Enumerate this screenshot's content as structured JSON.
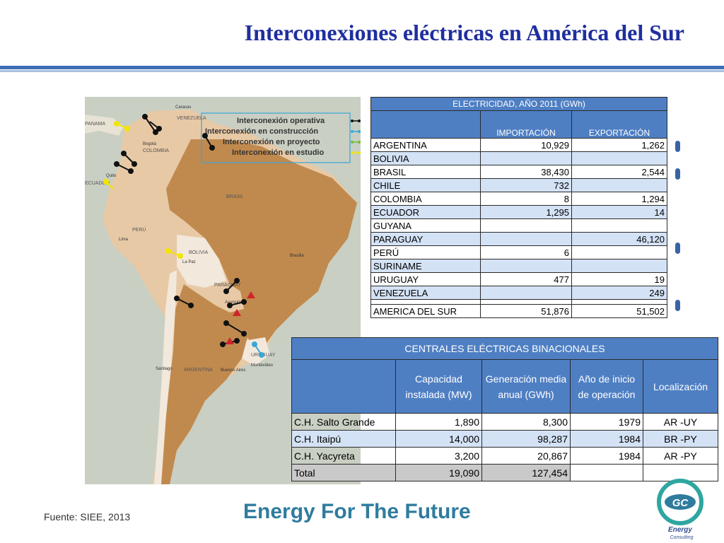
{
  "title": "Interconexiones eléctricas en América del Sur",
  "map": {
    "legend": {
      "operativa": "Interconexión operativa",
      "construccion": "Interconexión en construcción",
      "proyecto": "Interconexión en proyecto",
      "estudio": "Interconexión en estudio"
    },
    "countries": {
      "venezuela": "VENEZUELA",
      "colombia": "COLOMBIA",
      "ecuador": "ECUADOR",
      "peru": "PERÚ",
      "brasil": "BRASIL",
      "bolivia": "BOLIVIA",
      "paraguay": "PARAGUAY",
      "uruguay": "URUGUAY",
      "argentina": "ARGENTINA",
      "panama": "PANAMA"
    },
    "cities": {
      "caracas": "Caracas",
      "bogota": "Bogotá",
      "quito": "Quito",
      "lima": "Lima",
      "la_paz": "La Paz",
      "brasilia": "Brasilia",
      "santiago": "Santiago",
      "buenos_aires": "Buenos Aires",
      "montevideo": "Montevideo",
      "asuncion": "Asunción"
    },
    "colors": {
      "sea": "#c9cfc3",
      "land": "#e8e2d4",
      "brasil": "#c08a4e",
      "tan": "#e8c9a6",
      "light": "#f2e8dc",
      "yellow": "#f2e600",
      "cyan": "#37a6d6",
      "green": "#6fbf3a",
      "red": "#d0242b"
    }
  },
  "electricity_table": {
    "title": "ELECTRICIDAD, AÑO 2011 (GWh)",
    "col_import": "IMPORTACIÓN",
    "col_export": "EXPORTACIÓN",
    "rows": [
      {
        "country": "ARGENTINA",
        "import": "10,929",
        "export": "1,262"
      },
      {
        "country": "BOLIVIA",
        "import": "",
        "export": ""
      },
      {
        "country": "BRASIL",
        "import": "38,430",
        "export": "2,544"
      },
      {
        "country": "CHILE",
        "import": "732",
        "export": ""
      },
      {
        "country": "COLOMBIA",
        "import": "8",
        "export": "1,294"
      },
      {
        "country": "ECUADOR",
        "import": "1,295",
        "export": "14"
      },
      {
        "country": "GUYANA",
        "import": "",
        "export": ""
      },
      {
        "country": "PARAGUAY",
        "import": "",
        "export": "46,120"
      },
      {
        "country": "PERÚ",
        "import": "6",
        "export": ""
      },
      {
        "country": "SURINAME",
        "import": "",
        "export": ""
      },
      {
        "country": "URUGUAY",
        "import": "477",
        "export": "19"
      },
      {
        "country": "VENEZUELA",
        "import": "",
        "export": "249"
      }
    ],
    "total": {
      "country": "AMERICA DEL SUR",
      "import": "51,876",
      "export": "51,502"
    }
  },
  "plants_table": {
    "title": "CENTRALES ELÉCTRICAS BINACIONALES",
    "col_capacity_1": "Capacidad",
    "col_capacity_2": "instalada (MW)",
    "col_generation_1": "Generación media",
    "col_generation_2": "anual (GWh)",
    "col_year_1": "Año de inicio",
    "col_year_2": "de operación",
    "col_location": "Localización",
    "rows": [
      {
        "name": "C.H. Salto Grande",
        "capacity": "1,890",
        "generation": "8,300",
        "year": "1979",
        "location": "AR -UY"
      },
      {
        "name": "C.H. Itaipú",
        "capacity": "14,000",
        "generation": "98,287",
        "year": "1984",
        "location": "BR -PY"
      },
      {
        "name": "C.H. Yacyreta",
        "capacity": "3,200",
        "generation": "20,867",
        "year": "1984",
        "location": "AR -PY"
      }
    ],
    "total": {
      "name": "Total",
      "capacity": "19,090",
      "generation": "127,454",
      "year": "",
      "location": ""
    }
  },
  "footer": {
    "source": "Fuente: SIEE, 2013",
    "slogan": "Energy For The Future",
    "logo_letters": "GC",
    "logo_word1": "Energy",
    "logo_word2": "Consulting"
  }
}
